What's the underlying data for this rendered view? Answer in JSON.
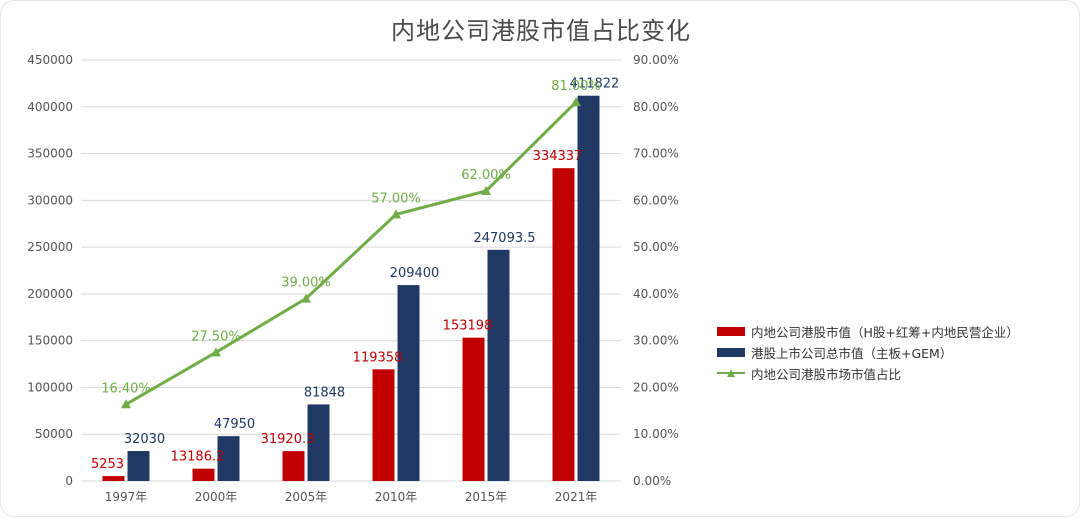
{
  "chart_data": {
    "type": "bar+line",
    "title": "内地公司港股市值占比变化",
    "categories": [
      "1997年",
      "2000年",
      "2005年",
      "2010年",
      "2015年",
      "2021年"
    ],
    "series": [
      {
        "name": "内地公司港股市值（H股+红筹+内地民营企业）",
        "type": "bar",
        "axis": "left",
        "color": "#c00000",
        "values": [
          5253,
          13186.2,
          31920.3,
          119358,
          153198,
          334337
        ],
        "labels": [
          "5253",
          "13186.2",
          "31920.3",
          "119358",
          "153198",
          "334337"
        ]
      },
      {
        "name": "港股上市公司总市值（主板+GEM）",
        "type": "bar",
        "axis": "left",
        "color": "#1f3864",
        "values": [
          32030,
          47950,
          81848,
          209400,
          247093.5,
          411822
        ],
        "labels": [
          "32030",
          "47950",
          "81848",
          "209400",
          "247093.5",
          "411822"
        ]
      },
      {
        "name": "内地公司港股市场市值占比",
        "type": "line",
        "axis": "right",
        "color": "#70ad47",
        "values": [
          16.4,
          27.5,
          39.0,
          57.0,
          62.0,
          81.0
        ],
        "labels": [
          "16.40%",
          "27.50%",
          "39.00%",
          "57.00%",
          "62.00%",
          "81.00%"
        ]
      }
    ],
    "y_left": {
      "ylim": [
        0,
        450000
      ],
      "ticks": [
        "0",
        "50000",
        "100000",
        "150000",
        "200000",
        "250000",
        "300000",
        "350000",
        "400000",
        "450000"
      ]
    },
    "y_right": {
      "ylim": [
        0,
        90
      ],
      "ticks": [
        "0.00%",
        "10.00%",
        "20.00%",
        "30.00%",
        "40.00%",
        "50.00%",
        "60.00%",
        "70.00%",
        "80.00%",
        "90.00%"
      ]
    },
    "grid": true,
    "legend_position": "right"
  }
}
